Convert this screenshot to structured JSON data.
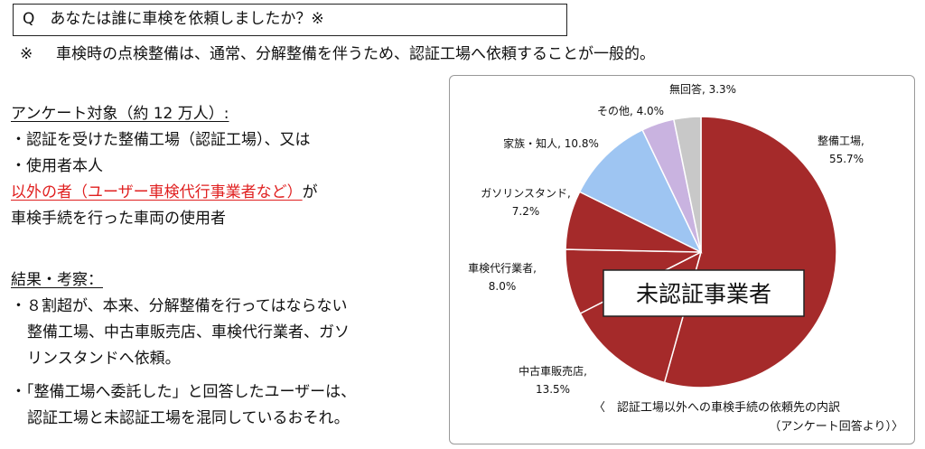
{
  "question": "Q　あなたは誰に車検を依頼しましたか？※",
  "footnote": {
    "mark": "※",
    "text": "車検時の点検整備は、通常、分解整備を伴うため、認証工場へ依頼することが一般的。"
  },
  "survey": {
    "heading": "アンケート対象（約 12 万人）:",
    "items": [
      "・認証を受けた整備工場（認証工場）、又は",
      "・使用者本人"
    ],
    "excluded_red": "以外の者（ユーザー車検代行事業者など）",
    "excluded_suffix": "が",
    "line_last": "車検手続を行った車両の使用者"
  },
  "results": {
    "heading": "結果・考察：",
    "bullet1_line1": "・８割超が、本来、分解整備を行ってはならない",
    "bullet1_line2": "整備工場、中古車販売店、車検代行業者、ガソ",
    "bullet1_line3": "リンスタンドへ依頼。",
    "bullet2_line1": "・「整備工場へ委託した」と回答したユーザーは、",
    "bullet2_line2": "認証工場と未認証工場を混同しているおそれ。"
  },
  "chart_data": {
    "type": "pie",
    "slices": [
      {
        "label": "整備工場,",
        "value": 55.7,
        "value_text": "55.7%",
        "color": "#a52a2a"
      },
      {
        "label": "中古車販売店,",
        "value": 13.5,
        "value_text": "13.5%",
        "color": "#a52a2a"
      },
      {
        "label": "車検代行業者,",
        "value": 8.0,
        "value_text": "8.0%",
        "color": "#a52a2a"
      },
      {
        "label": "ガソリンスタンド,",
        "value": 7.2,
        "value_text": "7.2%",
        "color": "#a52a2a"
      },
      {
        "label": "家族・知人,",
        "value": 10.8,
        "value_text": "10.8%",
        "color": "#9ec5f2"
      },
      {
        "label": "その他,",
        "value": 4.0,
        "value_text": "4.0%",
        "color": "#c9b3e0"
      },
      {
        "label": "無回答,",
        "value": 3.3,
        "value_text": "3.3%",
        "color": "#c8c8c8"
      }
    ],
    "overlay_label": "未認証事業者",
    "caption_line1": "〈　認証工場以外への車検手続の依頼先の内訳",
    "caption_line2": "（アンケート回答より）〉"
  }
}
